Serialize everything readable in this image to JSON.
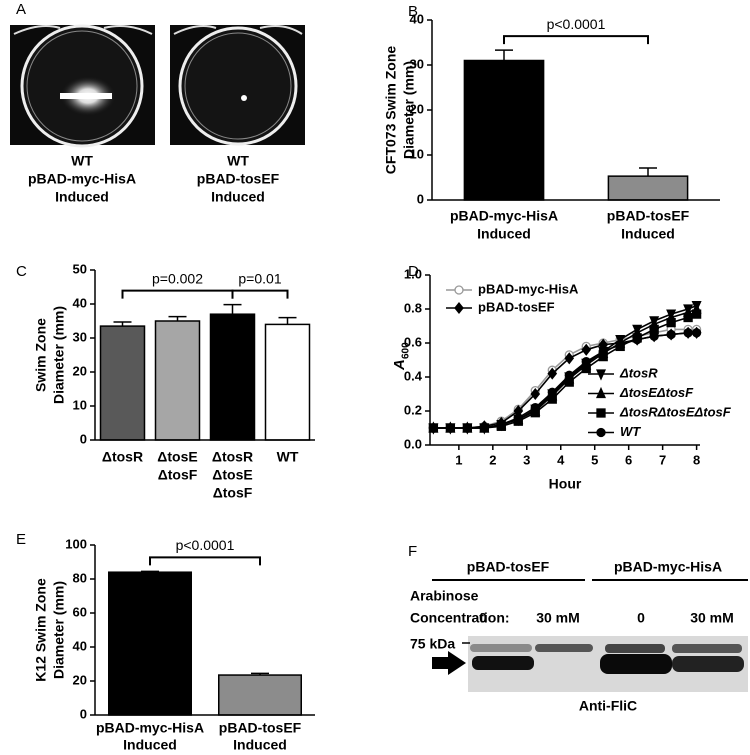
{
  "panel_a": {
    "label": "A",
    "captions": [
      [
        "WT",
        "pBAD-myc-HisA",
        "Induced"
      ],
      [
        "WT",
        "pBAD-tosEF",
        "Induced"
      ]
    ]
  },
  "chart_data": [
    {
      "panel_label": "B",
      "type": "bar",
      "y_label": [
        "CFT073 Swim Zone",
        "Diameter (mm)"
      ],
      "categories": [
        [
          "pBAD-myc-HisA",
          "Induced"
        ],
        [
          "pBAD-tosEF",
          "Induced"
        ]
      ],
      "values": [
        31,
        5.3
      ],
      "errors": [
        2.3,
        1.8
      ],
      "colors": [
        "#000000",
        "#8c8c8c"
      ],
      "ylim": [
        0,
        40
      ],
      "yticks": [
        0,
        10,
        20,
        30,
        40
      ],
      "annotations": [
        "p<0.0001"
      ]
    },
    {
      "panel_label": "C",
      "type": "bar",
      "y_label": [
        "Swim Zone",
        "Diameter (mm)"
      ],
      "categories": [
        [
          "ΔtosR"
        ],
        [
          "ΔtosE",
          "ΔtosF"
        ],
        [
          "ΔtosR",
          "ΔtosE",
          "ΔtosF"
        ],
        [
          "WT"
        ]
      ],
      "values": [
        33.5,
        35,
        37,
        34
      ],
      "errors": [
        1.2,
        1.3,
        2.8,
        2
      ],
      "colors": [
        "#595959",
        "#a6a6a6",
        "#000000",
        "#ffffff"
      ],
      "ylim": [
        0,
        50
      ],
      "yticks": [
        0,
        10,
        20,
        30,
        40,
        50
      ],
      "annotations": [
        "p=0.002",
        "p=0.01"
      ]
    },
    {
      "panel_label": "D",
      "type": "line",
      "y_label": {
        "text": "A",
        "subscript": "600"
      },
      "x_label": "Hour",
      "x": [
        0.25,
        0.75,
        1.25,
        1.75,
        2.25,
        2.75,
        3.25,
        3.75,
        4.25,
        4.75,
        5.25,
        5.75,
        6.25,
        6.75,
        7.25,
        7.75,
        8
      ],
      "series": [
        {
          "name": "pBAD-myc-HisA",
          "color": "#999999",
          "marker": "circle-open",
          "values": [
            0.1,
            0.1,
            0.1,
            0.11,
            0.14,
            0.21,
            0.32,
            0.44,
            0.53,
            0.58,
            0.6,
            0.62,
            0.64,
            0.66,
            0.68,
            0.68,
            0.68
          ]
        },
        {
          "name": "pBAD-tosEF",
          "color": "#000000",
          "marker": "diamond",
          "values": [
            0.1,
            0.1,
            0.1,
            0.11,
            0.13,
            0.2,
            0.3,
            0.42,
            0.51,
            0.56,
            0.59,
            0.6,
            0.62,
            0.64,
            0.65,
            0.66,
            0.66
          ]
        },
        {
          "name": "ΔtosR",
          "color": "#000000",
          "marker": "triangle-down",
          "values": [
            0.1,
            0.1,
            0.1,
            0.1,
            0.12,
            0.15,
            0.21,
            0.3,
            0.4,
            0.48,
            0.55,
            0.62,
            0.68,
            0.73,
            0.77,
            0.8,
            0.82
          ]
        },
        {
          "name": "ΔtosEΔtosF",
          "color": "#000000",
          "marker": "triangle",
          "values": [
            0.1,
            0.1,
            0.1,
            0.1,
            0.12,
            0.15,
            0.2,
            0.29,
            0.39,
            0.47,
            0.54,
            0.6,
            0.66,
            0.71,
            0.75,
            0.78,
            0.8
          ]
        },
        {
          "name": "ΔtosRΔtosEΔtosF",
          "color": "#000000",
          "marker": "square",
          "values": [
            0.1,
            0.1,
            0.1,
            0.1,
            0.11,
            0.14,
            0.19,
            0.27,
            0.37,
            0.45,
            0.52,
            0.58,
            0.63,
            0.68,
            0.72,
            0.75,
            0.77
          ]
        },
        {
          "name": "WT",
          "color": "#000000",
          "marker": "circle",
          "values": [
            0.1,
            0.1,
            0.1,
            0.1,
            0.12,
            0.16,
            0.22,
            0.31,
            0.41,
            0.49,
            0.55,
            0.59,
            0.62,
            0.64,
            0.65,
            0.66,
            0.66
          ]
        }
      ],
      "xlim": [
        0.15,
        8.1
      ],
      "xticks": [
        1,
        2,
        3,
        4,
        5,
        6,
        7,
        8
      ],
      "ylim": [
        0,
        1
      ],
      "yticks": [
        {
          "value": 0,
          "label": "0.0"
        },
        0.2,
        0.4,
        0.6,
        0.8,
        {
          "value": 1,
          "label": "1.0"
        }
      ]
    },
    {
      "panel_label": "E",
      "type": "bar",
      "y_label": [
        "K12 Swim Zone",
        "Diameter (mm)"
      ],
      "categories": [
        [
          "pBAD-myc-HisA",
          "Induced"
        ],
        [
          "pBAD-tosEF",
          "Induced"
        ]
      ],
      "values": [
        84,
        23.5
      ],
      "errors": [
        0.5,
        1
      ],
      "colors": [
        "#000000",
        "#8c8c8c"
      ],
      "ylim": [
        0,
        100
      ],
      "yticks": [
        0,
        20,
        40,
        60,
        80,
        100
      ],
      "annotations": [
        "p<0.0001"
      ]
    }
  ],
  "panel_f": {
    "label": "F",
    "groups": [
      "pBAD-tosEF",
      "pBAD-myc-HisA"
    ],
    "row_labels": [
      "Arabinose",
      "Concentration:"
    ],
    "lanes": [
      "0",
      "30 mM",
      "0",
      "30 mM"
    ],
    "marker": "75 kDa",
    "antibody": "Anti-FliC"
  }
}
